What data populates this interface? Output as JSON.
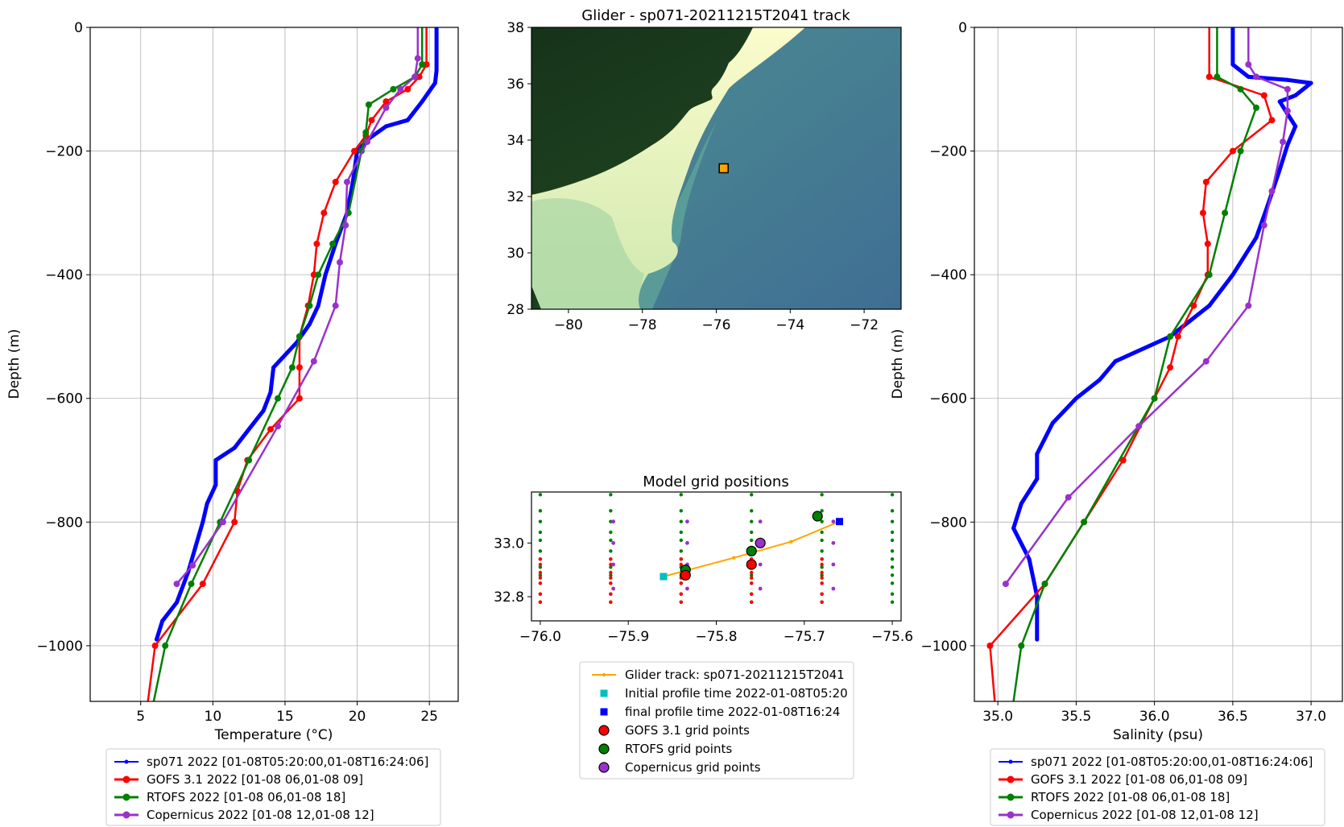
{
  "chart_data": [
    {
      "type": "line",
      "xlabel": "Temperature (°C)",
      "ylabel": "Depth (m)",
      "xlim": [
        1.5,
        27
      ],
      "ylim": [
        -1090,
        0
      ],
      "xticks": [
        5,
        10,
        15,
        20,
        25
      ],
      "yticks": [
        0,
        -200,
        -400,
        -600,
        -800,
        -1000
      ],
      "grid": true,
      "legend": "below",
      "series": [
        {
          "name": "sp071 2022 [01-08T05:20:00,01-08T16:24:06]",
          "color": "#0000ff",
          "points": [
            [
              25.5,
              0
            ],
            [
              25.5,
              -70
            ],
            [
              25.4,
              -90
            ],
            [
              24.5,
              -120
            ],
            [
              23.5,
              -150
            ],
            [
              22,
              -160
            ],
            [
              20.8,
              -180
            ],
            [
              20,
              -200
            ],
            [
              19.7,
              -250
            ],
            [
              19.3,
              -300
            ],
            [
              18.5,
              -350
            ],
            [
              17.8,
              -400
            ],
            [
              17.3,
              -450
            ],
            [
              16.7,
              -480
            ],
            [
              15.8,
              -510
            ],
            [
              15,
              -530
            ],
            [
              14.2,
              -550
            ],
            [
              14,
              -590
            ],
            [
              13.5,
              -620
            ],
            [
              12.5,
              -650
            ],
            [
              11.5,
              -680
            ],
            [
              10.2,
              -700
            ],
            [
              10.2,
              -740
            ],
            [
              9.6,
              -770
            ],
            [
              9.3,
              -800
            ],
            [
              8.8,
              -840
            ],
            [
              8.3,
              -880
            ],
            [
              7.5,
              -930
            ],
            [
              6.5,
              -960
            ],
            [
              6.1,
              -990
            ]
          ]
        },
        {
          "name": "GOFS 3.1 2022 [01-08 06,01-08 09]",
          "color": "#ff0000",
          "points": [
            [
              24.8,
              0
            ],
            [
              24.8,
              -60
            ],
            [
              24.3,
              -80
            ],
            [
              23.5,
              -100
            ],
            [
              22,
              -120
            ],
            [
              21,
              -150
            ],
            [
              20.6,
              -175
            ],
            [
              19.8,
              -200
            ],
            [
              18.5,
              -250
            ],
            [
              17.7,
              -300
            ],
            [
              17.2,
              -350
            ],
            [
              17,
              -400
            ],
            [
              16.6,
              -450
            ],
            [
              16,
              -500
            ],
            [
              16,
              -550
            ],
            [
              16,
              -600
            ],
            [
              14,
              -650
            ],
            [
              12.4,
              -700
            ],
            [
              11.7,
              -750
            ],
            [
              11.5,
              -800
            ],
            [
              9.3,
              -900
            ],
            [
              6,
              -1000
            ],
            [
              5.5,
              -1090
            ]
          ]
        },
        {
          "name": "RTOFS 2022 [01-08 06,01-08 18]",
          "color": "#008000",
          "points": [
            [
              24.5,
              0
            ],
            [
              24.5,
              -60
            ],
            [
              24,
              -80
            ],
            [
              22.5,
              -100
            ],
            [
              20.8,
              -125
            ],
            [
              20.6,
              -170
            ],
            [
              20.3,
              -200
            ],
            [
              19.4,
              -300
            ],
            [
              18.3,
              -350
            ],
            [
              17.3,
              -400
            ],
            [
              16.7,
              -450
            ],
            [
              16,
              -500
            ],
            [
              15.5,
              -550
            ],
            [
              14.5,
              -600
            ],
            [
              12.5,
              -700
            ],
            [
              10.5,
              -800
            ],
            [
              8.5,
              -900
            ],
            [
              6.7,
              -1000
            ],
            [
              5.9,
              -1090
            ]
          ]
        },
        {
          "name": "Copernicus 2022 [01-08 12,01-08 12]",
          "color": "#9932cc",
          "points": [
            [
              24.2,
              0
            ],
            [
              24.2,
              -50
            ],
            [
              24,
              -80
            ],
            [
              23,
              -100
            ],
            [
              22,
              -130
            ],
            [
              20.7,
              -185
            ],
            [
              19.3,
              -250
            ],
            [
              19.2,
              -320
            ],
            [
              18.8,
              -380
            ],
            [
              18.5,
              -450
            ],
            [
              17,
              -540
            ],
            [
              14.5,
              -645
            ],
            [
              10.7,
              -800
            ],
            [
              8.6,
              -870
            ],
            [
              7.5,
              -900
            ]
          ]
        }
      ]
    },
    {
      "type": "map",
      "title": "Glider - sp071-20211215T2041 track",
      "xlim": [
        -81,
        -71
      ],
      "ylim": [
        28,
        38
      ],
      "xticks": [
        -80,
        -78,
        -76,
        -74,
        -72
      ],
      "yticks": [
        28,
        30,
        32,
        34,
        36,
        38
      ],
      "marker": {
        "x": -75.8,
        "y": 33.0
      }
    },
    {
      "type": "scatter",
      "title": "Model grid positions",
      "xlim": [
        -76.01,
        -75.59
      ],
      "ylim": [
        32.71,
        33.19
      ],
      "xticks": [
        -76.0,
        -75.9,
        -75.8,
        -75.7,
        -75.6
      ],
      "yticks": [
        32.8,
        33.0
      ],
      "glider_track": [
        [
          -75.86,
          32.875
        ],
        [
          -75.78,
          32.945
        ],
        [
          -75.715,
          33.005
        ],
        [
          -75.66,
          33.08
        ]
      ],
      "initial_profile": [
        -75.86,
        32.875
      ],
      "final_profile": [
        -75.66,
        33.08
      ],
      "gofs_large": [
        [
          -75.835,
          32.88
        ],
        [
          -75.76,
          32.92
        ]
      ],
      "rtofs_large": [
        [
          -75.835,
          32.9
        ],
        [
          -75.76,
          32.97
        ],
        [
          -75.685,
          33.1
        ]
      ],
      "copernicus_large": [
        [
          -75.75,
          33.0
        ]
      ],
      "grid_x": [
        -76.0,
        -75.92,
        -75.84,
        -75.76,
        -75.68,
        -75.6
      ],
      "copernicus_x": [
        -75.917,
        -75.833,
        -75.75,
        -75.667
      ],
      "green_y": [
        32.78,
        32.81,
        32.85,
        32.88,
        32.91,
        32.94,
        32.97,
        33.01,
        33.04,
        33.08,
        33.12,
        33.18
      ],
      "red_y": [
        32.78,
        32.81,
        32.85,
        32.87,
        32.89,
        32.92,
        32.94
      ],
      "purple_y": [
        32.83,
        32.92,
        33.0,
        33.08
      ],
      "legend": [
        "Glider track: sp071-20211215T2041",
        "Initial profile time 2022-01-08T05:20",
        "final profile time 2022-01-08T16:24",
        "GOFS 3.1 grid points",
        "RTOFS grid points",
        "Copernicus grid points"
      ]
    },
    {
      "type": "line",
      "xlabel": "Salinity (psu)",
      "ylabel": "Depth (m)",
      "xlim": [
        34.85,
        37.2
      ],
      "ylim": [
        -1090,
        0
      ],
      "xticks": [
        35.0,
        35.5,
        36.0,
        36.5,
        37.0
      ],
      "yticks": [
        0,
        -200,
        -400,
        -600,
        -800,
        -1000
      ],
      "grid": true,
      "legend": "below",
      "series": [
        {
          "name": "sp071 2022 [01-08T05:20:00,01-08T16:24:06]",
          "color": "#0000ff",
          "points": [
            [
              36.5,
              0
            ],
            [
              36.5,
              -60
            ],
            [
              36.6,
              -80
            ],
            [
              36.85,
              -85
            ],
            [
              37.0,
              -90
            ],
            [
              36.9,
              -110
            ],
            [
              36.8,
              -120
            ],
            [
              36.85,
              -140
            ],
            [
              36.9,
              -160
            ],
            [
              36.85,
              -190
            ],
            [
              36.8,
              -230
            ],
            [
              36.72,
              -290
            ],
            [
              36.65,
              -340
            ],
            [
              36.5,
              -400
            ],
            [
              36.35,
              -450
            ],
            [
              36.1,
              -500
            ],
            [
              35.75,
              -540
            ],
            [
              35.65,
              -570
            ],
            [
              35.5,
              -600
            ],
            [
              35.35,
              -640
            ],
            [
              35.25,
              -690
            ],
            [
              35.25,
              -730
            ],
            [
              35.15,
              -770
            ],
            [
              35.1,
              -810
            ],
            [
              35.2,
              -860
            ],
            [
              35.25,
              -920
            ],
            [
              35.25,
              -990
            ]
          ]
        },
        {
          "name": "GOFS 3.1 2022 [01-08 06,01-08 09]",
          "color": "#ff0000",
          "points": [
            [
              36.35,
              0
            ],
            [
              36.35,
              -80
            ],
            [
              36.7,
              -110
            ],
            [
              36.75,
              -150
            ],
            [
              36.5,
              -200
            ],
            [
              36.33,
              -250
            ],
            [
              36.31,
              -300
            ],
            [
              36.34,
              -350
            ],
            [
              36.34,
              -400
            ],
            [
              36.25,
              -450
            ],
            [
              36.15,
              -500
            ],
            [
              36.1,
              -550
            ],
            [
              36.0,
              -600
            ],
            [
              35.8,
              -700
            ],
            [
              35.55,
              -800
            ],
            [
              35.3,
              -900
            ],
            [
              34.95,
              -1000
            ],
            [
              34.98,
              -1090
            ]
          ]
        },
        {
          "name": "RTOFS 2022 [01-08 06,01-08 18]",
          "color": "#008000",
          "points": [
            [
              36.4,
              0
            ],
            [
              36.4,
              -80
            ],
            [
              36.55,
              -100
            ],
            [
              36.65,
              -130
            ],
            [
              36.55,
              -200
            ],
            [
              36.45,
              -300
            ],
            [
              36.35,
              -400
            ],
            [
              36.1,
              -500
            ],
            [
              36.0,
              -600
            ],
            [
              35.55,
              -800
            ],
            [
              35.3,
              -900
            ],
            [
              35.15,
              -1000
            ],
            [
              35.1,
              -1090
            ]
          ]
        },
        {
          "name": "Copernicus 2022 [01-08 12,01-08 12]",
          "color": "#9932cc",
          "points": [
            [
              36.6,
              0
            ],
            [
              36.6,
              -60
            ],
            [
              36.65,
              -80
            ],
            [
              36.85,
              -100
            ],
            [
              36.85,
              -135
            ],
            [
              36.82,
              -185
            ],
            [
              36.75,
              -265
            ],
            [
              36.7,
              -320
            ],
            [
              36.6,
              -450
            ],
            [
              36.33,
              -540
            ],
            [
              35.9,
              -645
            ],
            [
              35.45,
              -760
            ],
            [
              35.05,
              -900
            ]
          ]
        }
      ]
    }
  ]
}
